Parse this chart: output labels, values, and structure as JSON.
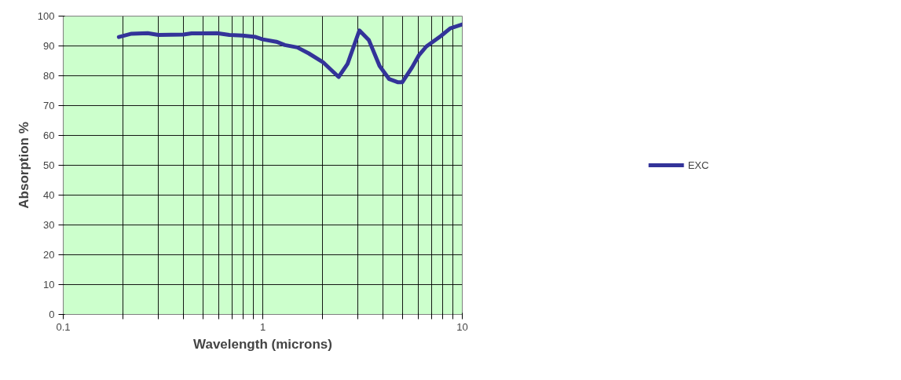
{
  "chart_data": {
    "type": "line",
    "xlabel": "Wavelength (microns)",
    "ylabel": "Absorption %",
    "log": "x",
    "xlim": [
      0.1,
      10
    ],
    "ylim": [
      0,
      100
    ],
    "xticks": [
      0.1,
      {
        "value": 0.2,
        "label": null
      },
      {
        "value": 0.3,
        "label": null
      },
      {
        "value": 0.4,
        "label": null
      },
      {
        "value": 0.5,
        "label": null
      },
      {
        "value": 0.6,
        "label": null
      },
      {
        "value": 0.7,
        "label": null
      },
      {
        "value": 0.8,
        "label": null
      },
      {
        "value": 0.9,
        "label": null
      },
      1,
      {
        "value": 2,
        "label": null
      },
      {
        "value": 3,
        "label": null
      },
      {
        "value": 4,
        "label": null
      },
      {
        "value": 5,
        "label": null
      },
      {
        "value": 6,
        "label": null
      },
      {
        "value": 7,
        "label": null
      },
      {
        "value": 8,
        "label": null
      },
      {
        "value": 9,
        "label": null
      },
      10
    ],
    "yticks": [
      0,
      10,
      20,
      30,
      40,
      50,
      60,
      70,
      80,
      90,
      100
    ],
    "grid": true,
    "legend": "right",
    "line_style": "solid",
    "marker": "none",
    "series": [
      {
        "name": "EXC",
        "color": "#333399",
        "x": [
          0.19,
          0.22,
          0.265,
          0.3,
          0.4,
          0.44,
          0.59,
          0.68,
          0.79,
          0.92,
          1.0,
          1.17,
          1.29,
          1.49,
          1.7,
          2.0,
          2.4,
          2.66,
          3.05,
          3.4,
          3.85,
          4.3,
          4.77,
          5.0,
          5.6,
          6.05,
          6.6,
          7.8,
          8.7,
          10
        ],
        "values": [
          93.0,
          94.1,
          94.3,
          93.7,
          93.8,
          94.2,
          94.3,
          93.7,
          93.5,
          93.0,
          92.2,
          91.4,
          90.3,
          89.5,
          87.5,
          84.6,
          79.6,
          84.0,
          95.2,
          92.0,
          83.3,
          78.9,
          77.8,
          77.8,
          82.8,
          86.8,
          89.8,
          93.3,
          95.9,
          97.2
        ]
      }
    ]
  }
}
